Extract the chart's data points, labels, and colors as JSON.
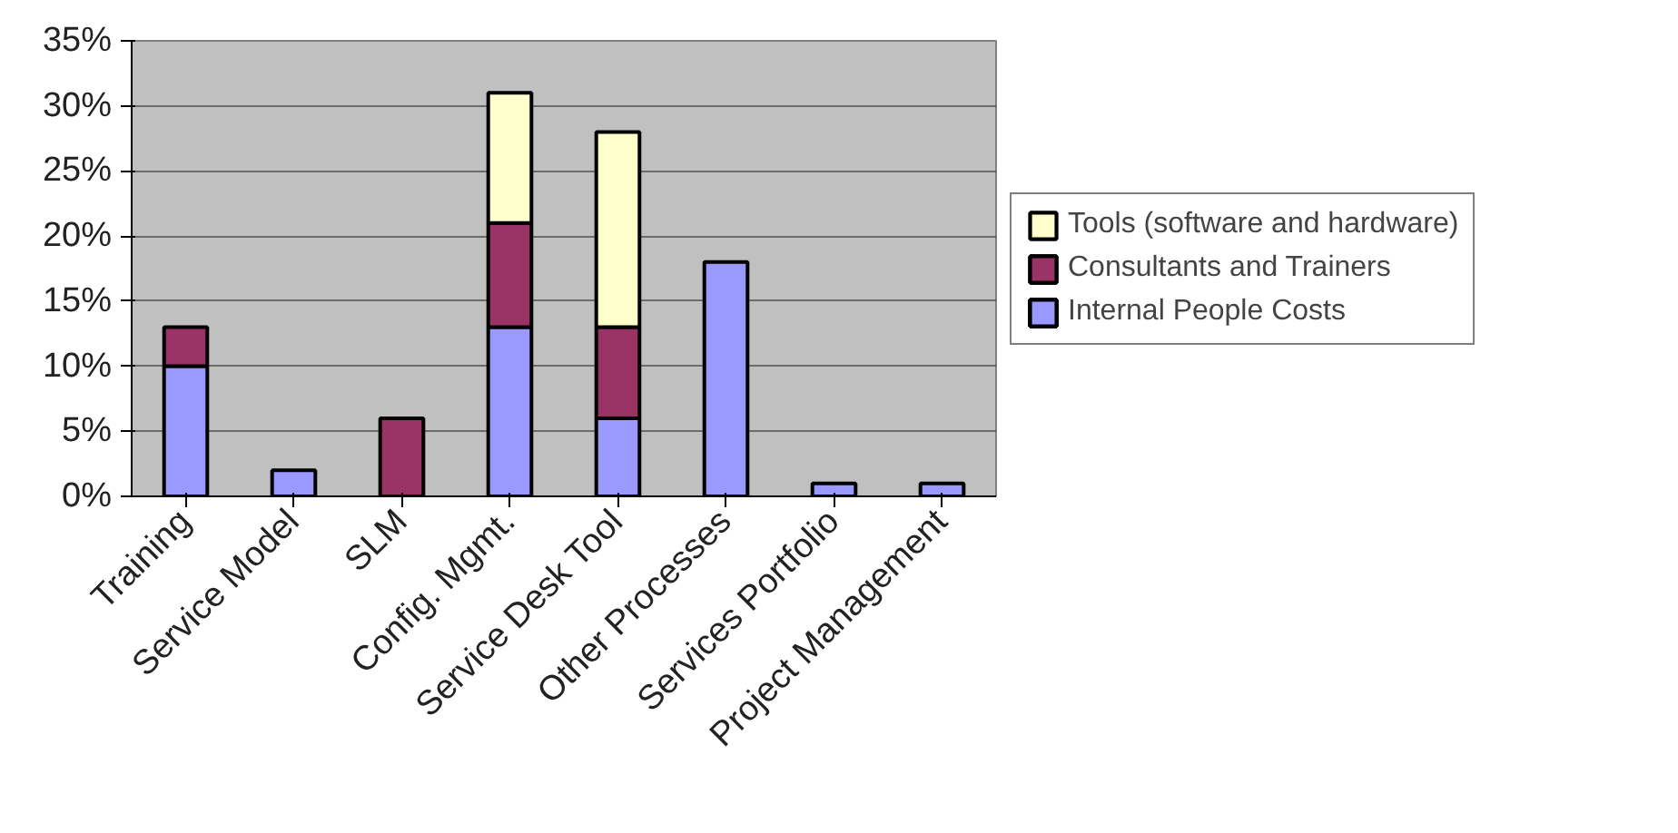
{
  "chart_data": {
    "type": "bar",
    "stacked": true,
    "categories": [
      "Training",
      "Service Model",
      "SLM",
      "Config. Mgmt.",
      "Service Desk Tool",
      "Other Processes",
      "Services Portfolio",
      "Project Management"
    ],
    "series": [
      {
        "name": "Internal People Costs",
        "color": "#9999ff",
        "values": [
          10,
          2,
          0,
          13,
          6,
          18,
          1,
          1
        ]
      },
      {
        "name": "Consultants and Trainers",
        "color": "#993366",
        "values": [
          3,
          0,
          6,
          8,
          7,
          0,
          0,
          0
        ]
      },
      {
        "name": "Tools (software and hardware)",
        "color": "#ffffcc",
        "values": [
          0,
          0,
          0,
          10,
          15,
          0,
          0,
          0
        ]
      }
    ],
    "ylim": [
      0,
      35
    ],
    "yticks": [
      {
        "value": 0,
        "label": "0%"
      },
      {
        "value": 5,
        "label": "5%"
      },
      {
        "value": 10,
        "label": "10%"
      },
      {
        "value": 15,
        "label": "15%"
      },
      {
        "value": 20,
        "label": "20%"
      },
      {
        "value": 25,
        "label": "25%"
      },
      {
        "value": 30,
        "label": "30%"
      },
      {
        "value": 35,
        "label": "35%"
      }
    ],
    "grid": "y",
    "legend": "right"
  }
}
